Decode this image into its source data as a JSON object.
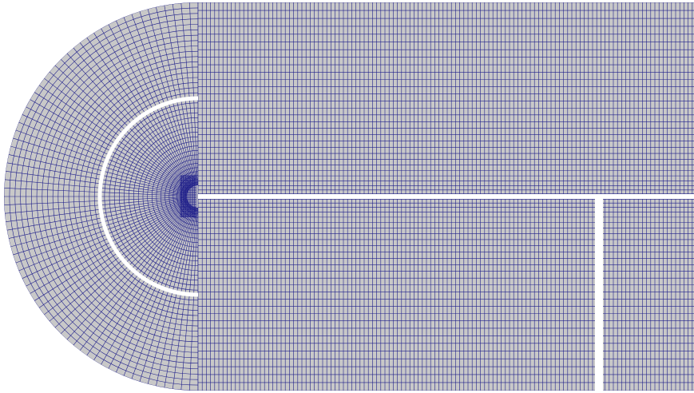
{
  "diagram": {
    "kind": "structured-mesh",
    "colors": {
      "background": "#ffffff",
      "mesh_fill": "#c8c8c8",
      "grid_line": "#1f1f8a",
      "cut_line": "#ffffff"
    },
    "regions": [
      {
        "name": "outer-semicircle-region"
      },
      {
        "name": "inner-semicircle-region"
      },
      {
        "name": "upper-rectangle-region"
      },
      {
        "name": "lower-left-rectangle-region"
      },
      {
        "name": "lower-right-rectangle-region"
      }
    ]
  }
}
